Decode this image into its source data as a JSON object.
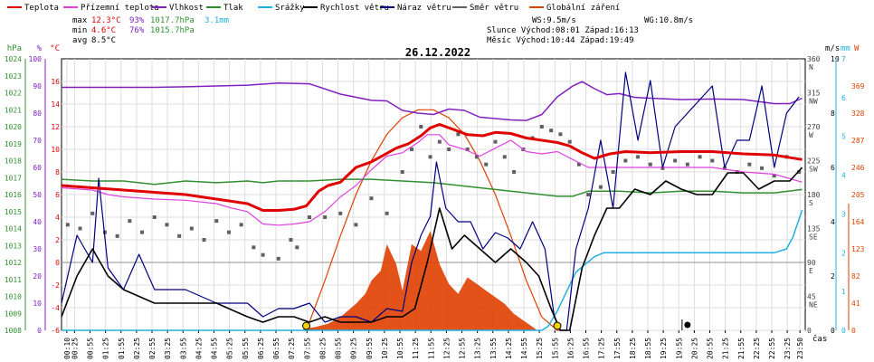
{
  "colors": {
    "temperature": "#e00000",
    "dewpoint": "#e040e0",
    "humidity": "#8020c0",
    "pressure": "#309030",
    "rain": "#20b0e0",
    "wind_speed": "#000000",
    "wind_gust": "#000080",
    "wind_dir": "#606060",
    "solar": "#e04000"
  },
  "legend": [
    {
      "key": "temperature",
      "label": "Teplota"
    },
    {
      "key": "dewpoint",
      "label": "Přízemní teplota"
    },
    {
      "key": "humidity",
      "label": "Vlhkost"
    },
    {
      "key": "pressure",
      "label": "Tlak"
    },
    {
      "key": "rain",
      "label": "Srážky"
    },
    {
      "key": "wind_speed",
      "label": "Rychlost větru"
    },
    {
      "key": "wind_gust",
      "label": "Náraz větru"
    },
    {
      "key": "wind_dir",
      "label": "Směr větru"
    },
    {
      "key": "solar",
      "label": "Globální záření"
    }
  ],
  "stats": {
    "max_label": "max",
    "max_temp": "12.3°C",
    "max_hum": "93%",
    "max_press": "1017.7hPa",
    "max_rain": "3.1mm",
    "min_label": "min",
    "min_temp": "4.6°C",
    "min_hum": "76%",
    "min_press": "1015.7hPa",
    "avg_label": "avg",
    "avg_temp": "8.5°C"
  },
  "info": {
    "ws": "WS:9.5m/s",
    "wg": "WG:10.8m/s",
    "sun": "Slunce Východ:08:01  Západ:16:13",
    "moon": "Měsíc  Východ:10:44  Západ:19:49"
  },
  "chart_data": {
    "type": "line",
    "title": "26.12.2022",
    "xlabel": "čas",
    "x_ticks": [
      "00:10",
      "00:25",
      "00:55",
      "01:25",
      "01:55",
      "02:25",
      "02:55",
      "03:25",
      "03:55",
      "04:25",
      "04:55",
      "05:25",
      "05:55",
      "06:25",
      "06:55",
      "07:25",
      "07:55",
      "08:25",
      "08:55",
      "09:25",
      "09:55",
      "10:25",
      "10:55",
      "11:25",
      "11:55",
      "12:25",
      "12:55",
      "13:25",
      "13:55",
      "14:25",
      "14:55",
      "15:25",
      "15:55",
      "16:25",
      "16:55",
      "17:25",
      "17:55",
      "18:25",
      "18:55",
      "19:25",
      "19:55",
      "20:25",
      "20:55",
      "21:25",
      "21:55",
      "22:25",
      "22:55",
      "23:25",
      "23:50"
    ],
    "x_tick_hours": [
      0.17,
      0.42,
      0.92,
      1.42,
      1.92,
      2.42,
      2.92,
      3.42,
      3.92,
      4.42,
      4.92,
      5.42,
      5.92,
      6.42,
      6.92,
      7.42,
      7.92,
      8.42,
      8.92,
      9.42,
      9.92,
      10.42,
      10.92,
      11.42,
      11.92,
      12.42,
      12.92,
      13.42,
      13.92,
      14.42,
      14.92,
      15.42,
      15.92,
      16.42,
      16.92,
      17.42,
      17.92,
      18.42,
      18.92,
      19.42,
      19.92,
      20.42,
      20.92,
      21.42,
      21.92,
      22.42,
      22.92,
      23.42,
      23.83
    ],
    "axes": {
      "hpa": {
        "unit": "hPa",
        "min": 1008,
        "max": 1024,
        "ticks": [
          1008,
          1009,
          1010,
          1011,
          1012,
          1013,
          1014,
          1015,
          1016,
          1017,
          1018,
          1019,
          1020,
          1021,
          1022,
          1023,
          1024
        ]
      },
      "pct": {
        "unit": "%",
        "min": 0,
        "max": 100,
        "ticks": [
          0,
          10,
          20,
          30,
          40,
          50,
          60,
          70,
          80,
          90,
          100
        ]
      },
      "celsius": {
        "unit": "°C",
        "min": -6,
        "max": 18,
        "ticks": [
          -6,
          -4,
          -2,
          0,
          2,
          4,
          6,
          8,
          10,
          12,
          14,
          16
        ]
      },
      "wind_dir": {
        "unit": "",
        "ticks": [
          {
            "v": 360,
            "label": "360",
            "dir": "N"
          },
          {
            "v": 315,
            "label": "315",
            "dir": "NW"
          },
          {
            "v": 270,
            "label": "270",
            "dir": "W"
          },
          {
            "v": 225,
            "label": "225",
            "dir": "SW"
          },
          {
            "v": 180,
            "label": "180",
            "dir": "S"
          },
          {
            "v": 135,
            "label": "135",
            "dir": "SE"
          },
          {
            "v": 90,
            "label": "90",
            "dir": "E"
          },
          {
            "v": 45,
            "label": "45",
            "dir": "NE"
          },
          {
            "v": 0,
            "label": "0",
            "dir": ""
          }
        ]
      },
      "ms": {
        "unit": "m/s",
        "min": 0,
        "max": 10,
        "ticks": [
          0,
          2,
          4,
          6,
          8,
          10
        ]
      },
      "mm": {
        "unit": "mm",
        "min": 0,
        "max": 7,
        "ticks": [
          0,
          1,
          2,
          3,
          4,
          5,
          6,
          7
        ]
      },
      "w": {
        "unit": "W",
        "min": 0,
        "max": 410,
        "ticks": [
          0,
          41,
          82,
          123,
          164,
          205,
          246,
          287,
          328,
          369
        ]
      }
    },
    "series": [
      {
        "key": "temperature",
        "axis": "celsius",
        "x": [
          0,
          1,
          2,
          3,
          4,
          5,
          6,
          6.5,
          7,
          7.5,
          7.9,
          8.3,
          8.6,
          9,
          9.5,
          10,
          10.4,
          10.8,
          11.2,
          11.6,
          11.9,
          12.2,
          12.6,
          13.1,
          13.6,
          14,
          14.5,
          15,
          15.5,
          16,
          16.4,
          16.8,
          17.2,
          17.7,
          18.2,
          19,
          20,
          21,
          22,
          23,
          23.9
        ],
        "y": [
          6.8,
          6.6,
          6.4,
          6.2,
          6.0,
          5.6,
          5.2,
          4.6,
          4.6,
          4.7,
          5.0,
          6.3,
          6.8,
          7.1,
          8.4,
          8.9,
          9.5,
          10.1,
          10.5,
          11.2,
          11.9,
          12.2,
          11.8,
          11.3,
          11.2,
          11.5,
          11.4,
          11.0,
          10.8,
          10.6,
          10.3,
          9.7,
          9.2,
          9.6,
          9.8,
          9.7,
          9.8,
          9.8,
          9.6,
          9.5,
          9.1
        ]
      },
      {
        "key": "dewpoint",
        "axis": "celsius",
        "x": [
          0,
          1,
          1.5,
          2,
          3,
          4,
          5,
          5.5,
          6,
          6.5,
          7,
          7.5,
          8,
          8.5,
          9,
          9.5,
          10,
          10.5,
          11,
          11.5,
          11.8,
          12.2,
          12.5,
          13,
          13.5,
          14,
          14.5,
          15,
          15.5,
          16,
          16.5,
          17,
          18,
          19,
          20,
          21,
          22,
          23,
          23.9
        ],
        "y": [
          6.6,
          6.4,
          6.0,
          5.8,
          5.6,
          5.5,
          5.2,
          4.8,
          4.5,
          3.4,
          3.3,
          3.4,
          3.6,
          4.5,
          5.8,
          6.8,
          8.2,
          9.4,
          9.7,
          10.6,
          11.3,
          11.3,
          10.4,
          10.0,
          9.4,
          10.1,
          10.8,
          9.8,
          9.6,
          9.8,
          9.1,
          8.4,
          8.4,
          8.4,
          8.4,
          8.4,
          8.0,
          7.8,
          7.1
        ]
      },
      {
        "key": "humidity",
        "axis": "pct",
        "x": [
          0,
          1,
          2,
          3,
          4,
          5,
          6,
          7,
          8,
          9,
          10,
          10.5,
          11,
          11.5,
          12,
          12.5,
          13,
          13.5,
          14,
          14.5,
          15,
          15.5,
          16,
          16.5,
          16.8,
          17.2,
          17.6,
          18,
          18.5,
          19,
          20,
          21,
          22,
          23,
          23.5,
          23.9
        ],
        "y": [
          89.5,
          89.5,
          89.5,
          89.5,
          89.7,
          90,
          90.3,
          91.1,
          90.8,
          87.0,
          84.7,
          84.5,
          81.0,
          80.0,
          79.5,
          81.5,
          81.0,
          78.5,
          78.0,
          77.5,
          77.3,
          79.5,
          86.0,
          90.0,
          91.6,
          89.0,
          86.8,
          87.2,
          85.8,
          85.5,
          85.0,
          85.2,
          85.0,
          83.5,
          83.5,
          85.5
        ]
      },
      {
        "key": "pressure",
        "axis": "hpa",
        "x": [
          0,
          1,
          2,
          3,
          4,
          5,
          6,
          6.5,
          7,
          8,
          9,
          10,
          11,
          12,
          13,
          14,
          15,
          16,
          16.5,
          17,
          18,
          19,
          20,
          21,
          22,
          23,
          23.9
        ],
        "y": [
          1016.9,
          1016.8,
          1016.8,
          1016.6,
          1016.8,
          1016.7,
          1016.8,
          1016.7,
          1016.8,
          1016.8,
          1016.9,
          1016.9,
          1016.8,
          1016.7,
          1016.5,
          1016.3,
          1016.1,
          1015.9,
          1015.9,
          1016.2,
          1016.2,
          1016.1,
          1016.2,
          1016.2,
          1016.1,
          1016.1,
          1016.3
        ]
      },
      {
        "key": "wind_gust",
        "axis": "ms",
        "x": [
          0,
          0.5,
          1,
          1.2,
          1.5,
          2,
          2.5,
          3,
          4,
          5,
          6,
          6.5,
          7,
          7.5,
          8,
          8.5,
          9,
          9.5,
          10,
          10.5,
          11,
          11.3,
          11.6,
          11.9,
          12.1,
          12.4,
          12.8,
          13.2,
          13.6,
          14,
          14.4,
          14.8,
          15.2,
          15.6,
          15.9,
          16.1,
          16.3,
          16.6,
          17,
          17.4,
          17.8,
          18.2,
          18.6,
          19,
          19.4,
          19.8,
          20.2,
          20.6,
          21,
          21.4,
          21.8,
          22.2,
          22.6,
          23,
          23.4,
          23.8
        ],
        "y": [
          1.0,
          3.5,
          2.5,
          5.6,
          2.3,
          1.5,
          2.8,
          1.5,
          1.5,
          1.0,
          1.0,
          0.5,
          0.8,
          0.8,
          1.0,
          0.3,
          0.5,
          0.5,
          0.3,
          0.8,
          0.7,
          2.5,
          3.5,
          4.2,
          6.2,
          4.5,
          4.0,
          4.0,
          3.0,
          3.6,
          3.4,
          3.0,
          4.0,
          3.0,
          0.5,
          0.0,
          0.0,
          3.0,
          4.5,
          7.0,
          4.5,
          9.5,
          7.0,
          9.2,
          6.0,
          7.5,
          8.0,
          8.5,
          9.0,
          6.0,
          7.0,
          7.0,
          9.0,
          6.0,
          8.0,
          8.6
        ]
      },
      {
        "key": "wind_speed",
        "axis": "ms",
        "x": [
          0,
          0.5,
          1,
          1.5,
          2,
          3,
          4,
          5,
          6,
          6.5,
          7,
          7.5,
          8,
          8.5,
          9,
          10,
          10.5,
          11,
          11.4,
          11.8,
          12.2,
          12.6,
          13,
          13.5,
          14,
          14.5,
          15,
          15.4,
          15.8,
          16.1,
          16.4,
          16.8,
          17.2,
          17.6,
          18,
          18.5,
          19,
          19.5,
          20,
          20.5,
          21,
          21.5,
          22,
          22.5,
          23,
          23.5,
          23.9
        ],
        "y": [
          0.5,
          2.0,
          3.0,
          2.0,
          1.5,
          1.0,
          1.0,
          1.0,
          0.5,
          0.3,
          0.5,
          0.5,
          0.3,
          0.5,
          0.3,
          0.3,
          0.5,
          0.5,
          0.8,
          2.5,
          4.5,
          3.0,
          3.5,
          3.0,
          2.5,
          3.0,
          2.5,
          2.0,
          0.8,
          0.0,
          0.0,
          2.3,
          3.5,
          4.5,
          4.5,
          5.2,
          5.0,
          5.5,
          5.2,
          5.0,
          5.0,
          5.8,
          5.8,
          5.2,
          5.5,
          5.5,
          6.0
        ]
      },
      {
        "key": "rain",
        "axis": "mm",
        "x": [
          0,
          15.5,
          15.7,
          16.0,
          16.3,
          16.6,
          16.9,
          17.2,
          17.5,
          18,
          19,
          20,
          21,
          22,
          23,
          23.4,
          23.6,
          23.9
        ],
        "y": [
          0,
          0,
          0.1,
          0.5,
          1.0,
          1.5,
          1.7,
          1.9,
          2.0,
          2.0,
          2.0,
          2.0,
          2.0,
          2.0,
          2.0,
          2.1,
          2.4,
          3.1
        ]
      },
      {
        "key": "solar",
        "axis": "w",
        "type": "area",
        "x": [
          7.8,
          8.2,
          8.6,
          9.0,
          9.2,
          9.5,
          9.8,
          10.0,
          10.3,
          10.5,
          10.8,
          11.0,
          11.3,
          11.6,
          11.9,
          12.2,
          12.5,
          12.8,
          13.1,
          13.4,
          13.7,
          14.0,
          14.3,
          14.6,
          14.9,
          15.3
        ],
        "y": [
          2,
          5,
          10,
          20,
          28,
          40,
          55,
          75,
          90,
          130,
          100,
          60,
          130,
          120,
          150,
          100,
          70,
          55,
          80,
          70,
          60,
          50,
          40,
          25,
          15,
          2
        ]
      },
      {
        "key": "solar_theory",
        "axis": "w",
        "x": [
          7.9,
          8.5,
          9.0,
          9.5,
          10.0,
          10.5,
          11.0,
          11.5,
          12.0,
          12.5,
          13.0,
          13.5,
          14.0,
          14.5,
          15.0,
          15.5,
          16.0,
          16.2
        ],
        "y": [
          0,
          75,
          143,
          205,
          256,
          296,
          321,
          333,
          333,
          321,
          296,
          256,
          205,
          143,
          75,
          20,
          0,
          0
        ]
      },
      {
        "key": "wind_dir",
        "axis": "wind_dir",
        "type": "scatter",
        "x": [
          0.2,
          0.6,
          1.0,
          1.4,
          1.8,
          2.2,
          2.6,
          3.0,
          3.4,
          3.8,
          4.2,
          4.6,
          5.0,
          5.4,
          5.8,
          6.2,
          6.5,
          7.0,
          7.4,
          7.6,
          8.0,
          8.5,
          9.0,
          9.5,
          10.0,
          10.5,
          11.0,
          11.3,
          11.6,
          11.9,
          12.2,
          12.5,
          12.8,
          13.1,
          13.4,
          13.7,
          14.0,
          14.3,
          14.6,
          14.9,
          15.2,
          15.5,
          15.8,
          16.1,
          16.4,
          16.7,
          17.0,
          17.4,
          17.8,
          18.2,
          18.6,
          19.0,
          19.4,
          19.8,
          20.2,
          20.6,
          21.0,
          21.4,
          21.8,
          22.2,
          22.6,
          23.0,
          23.4,
          23.8
        ],
        "y": [
          140,
          135,
          155,
          130,
          125,
          145,
          130,
          150,
          140,
          125,
          135,
          120,
          145,
          130,
          140,
          110,
          100,
          95,
          120,
          110,
          150,
          150,
          155,
          140,
          175,
          155,
          210,
          240,
          270,
          230,
          250,
          240,
          260,
          240,
          230,
          220,
          250,
          230,
          210,
          240,
          255,
          270,
          265,
          260,
          250,
          220,
          180,
          190,
          210,
          225,
          230,
          220,
          215,
          225,
          220,
          230,
          225,
          215,
          210,
          220,
          215,
          205,
          230,
          210
        ]
      }
    ],
    "rain_events": [
      7.9,
      16.0
    ],
    "markers": [
      {
        "x": 20.2,
        "axis": "mm",
        "y": 0.3
      }
    ],
    "zero_line_celsius": 0
  }
}
